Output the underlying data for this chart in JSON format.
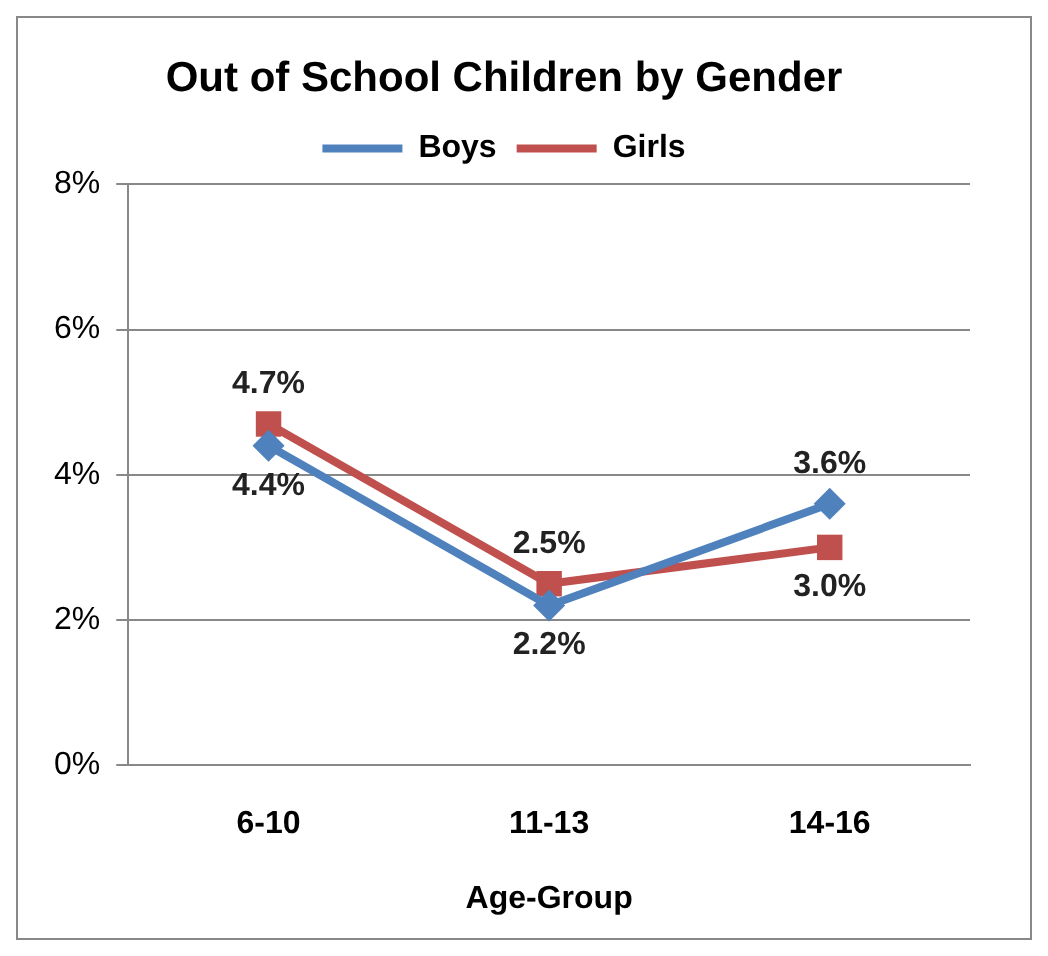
{
  "chart_data": {
    "type": "line",
    "title": "Out of School Children by Gender",
    "xlabel": "Age-Group",
    "categories": [
      "6-10",
      "11-13",
      "14-16"
    ],
    "series": [
      {
        "name": "Boys",
        "color": "#4f81bd",
        "marker": "diamond",
        "values": [
          4.4,
          2.2,
          3.6
        ],
        "value_labels": [
          "4.4%",
          "2.2%",
          "3.6%"
        ]
      },
      {
        "name": "Girls",
        "color": "#c0504d",
        "marker": "square",
        "values": [
          4.7,
          2.5,
          3.0
        ],
        "value_labels": [
          "4.7%",
          "2.5%",
          "3.0%"
        ]
      }
    ],
    "ylim": [
      0,
      8
    ],
    "yticks": [
      {
        "value": 0,
        "label": "0%"
      },
      {
        "value": 2,
        "label": "2%"
      },
      {
        "value": 4,
        "label": "4%"
      },
      {
        "value": 6,
        "label": "6%"
      },
      {
        "value": 8,
        "label": "8%"
      }
    ],
    "grid": "y",
    "legend": "top",
    "line_style": "solid"
  }
}
